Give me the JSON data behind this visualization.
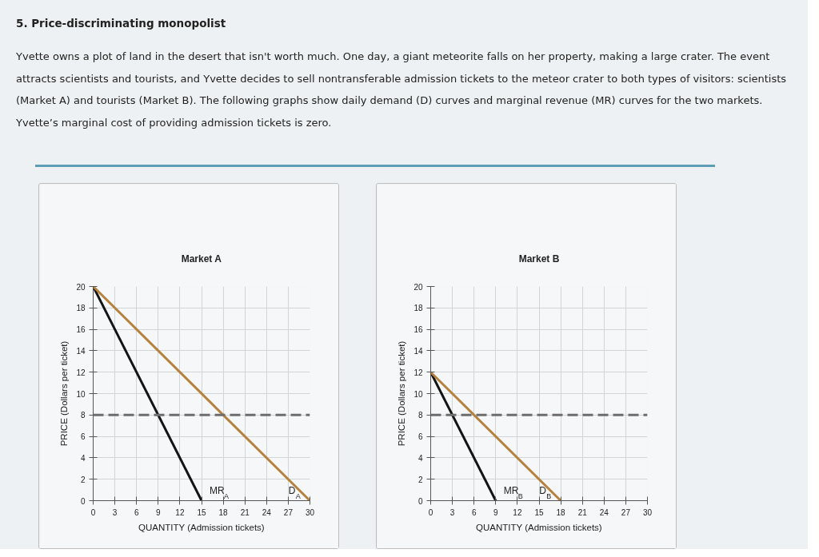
{
  "chart_data": [
    {
      "type": "other",
      "title": "5. Price-discriminating monopolist",
      "annotations": [
        "Yvette owns a plot of land in the desert that isn't worth much. One day, a giant meteorite falls on her property, making a large crater. The event attracts scientists and tourists, and Yvette decides to sell nontransferable admission tickets to the meteor crater to both types of visitors: scientists (Market A) and tourists (Market B). The following graphs show daily demand (D) curves and marginal revenue (MR) curves for the two markets. Yvette’s marginal cost of providing admission tickets is zero."
      ]
    },
    {
      "type": "line",
      "title": "Market A",
      "xlabel": "QUANTITY (Admission tickets)",
      "ylabel": "PRICE (Dollars per ticket)",
      "xlim": [
        0,
        30
      ],
      "ylim": [
        0,
        20
      ],
      "xticks": [
        0,
        3,
        6,
        9,
        12,
        15,
        18,
        21,
        24,
        27,
        30
      ],
      "yticks": [
        0,
        2,
        4,
        6,
        8,
        10,
        12,
        14,
        16,
        18,
        20
      ],
      "grid": true,
      "line_style": "solid",
      "series": [
        {
          "name": "MR$_{A}$",
          "color": "#141414",
          "x": [
            0,
            15
          ],
          "values": [
            20,
            0
          ]
        },
        {
          "name": "D$_{A}$",
          "color": "#b5813c",
          "x": [
            0,
            30
          ],
          "values": [
            20,
            0
          ]
        }
      ],
      "ref_lines": [
        {
          "axis": "y",
          "value": 8,
          "color": "#6e6e6e",
          "line_style": "dashed"
        }
      ]
    },
    {
      "type": "line",
      "title": "Market B",
      "xlabel": "QUANTITY (Admission tickets)",
      "ylabel": "PRICE (Dollars per ticket)",
      "xlim": [
        0,
        30
      ],
      "ylim": [
        0,
        20
      ],
      "xticks": [
        0,
        3,
        6,
        9,
        12,
        15,
        18,
        21,
        24,
        27,
        30
      ],
      "yticks": [
        0,
        2,
        4,
        6,
        8,
        10,
        12,
        14,
        16,
        18,
        20
      ],
      "grid": true,
      "line_style": "solid",
      "series": [
        {
          "name": "MR$_{B}$",
          "color": "#141414",
          "x": [
            0,
            9
          ],
          "values": [
            12,
            0
          ]
        },
        {
          "name": "D$_{B}$",
          "color": "#b5813c",
          "x": [
            0,
            18
          ],
          "values": [
            12,
            0
          ]
        }
      ],
      "ref_lines": [
        {
          "axis": "y",
          "value": 8,
          "color": "#6e6e6e",
          "line_style": "dashed"
        }
      ]
    }
  ]
}
